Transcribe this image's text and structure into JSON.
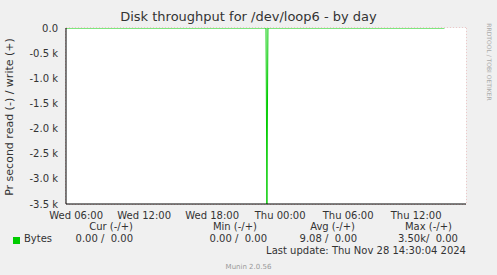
{
  "chart_data": {
    "type": "line",
    "title": "Disk throughput for /dev/loop6 - by day",
    "y_label": "Pr second read (-) / write (+)",
    "x": [
      5.1,
      22.75,
      22.83,
      22.92,
      38.5
    ],
    "series": [
      {
        "name": "Bytes",
        "color": "#00cc00",
        "values": [
          0,
          0,
          -3500,
          0,
          0
        ]
      }
    ],
    "xlim": [
      5.1,
      40.4
    ],
    "xticks": [
      {
        "value": 6,
        "label": "Wed 06:00"
      },
      {
        "value": 12,
        "label": "Wed 12:00"
      },
      {
        "value": 18,
        "label": "Wed 18:00"
      },
      {
        "value": 24,
        "label": "Thu 00:00"
      },
      {
        "value": 30,
        "label": "Thu 06:00"
      },
      {
        "value": 36,
        "label": "Thu 12:00"
      }
    ],
    "ylim": [
      -3500,
      0
    ],
    "yticks": [
      {
        "value": -3500,
        "label": "-3.5 k"
      },
      {
        "value": -3000,
        "label": "-3.0 k"
      },
      {
        "value": -2500,
        "label": "-2.5 k"
      },
      {
        "value": -2000,
        "label": "-2.0 k"
      },
      {
        "value": -1500,
        "label": "-1.5 k"
      },
      {
        "value": -1000,
        "label": "-1.0 k"
      },
      {
        "value": -500,
        "label": "-0.5 k"
      },
      {
        "value": 0,
        "label": "0.0"
      }
    ],
    "grid": true,
    "stats": {
      "columns": [
        "Cur (-/+)",
        "Min (-/+)",
        "Avg (-/+)",
        "Max (-/+)"
      ],
      "rows": [
        [
          "0.00 /  0.00",
          "0.00 /  0.00",
          "9.08 /  0.00",
          "3.50k/  0.00"
        ]
      ]
    },
    "footer": "Last update: Thu Nov 28 14:30:04 2024",
    "credit": "Munin 2.0.56",
    "side_text": "RRDTOOL / TOBI OETIKER"
  }
}
